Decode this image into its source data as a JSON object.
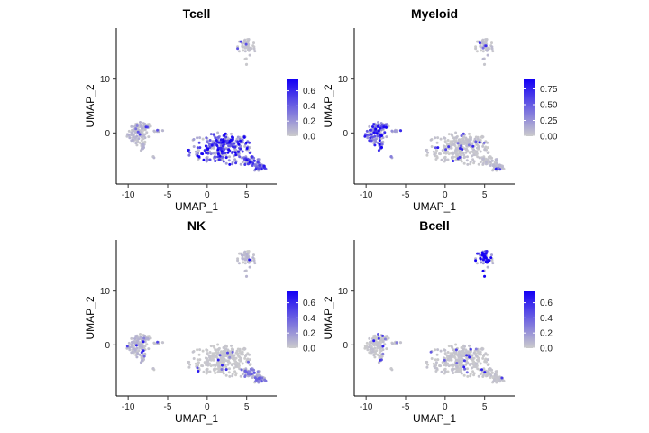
{
  "chart_data": [
    {
      "type": "scatter",
      "title": "Tcell",
      "xlabel": "UMAP_1",
      "ylabel": "UMAP_2",
      "xlim": [
        -11.5,
        8.8
      ],
      "ylim": [
        -9.5,
        19.5
      ],
      "x_ticks": [
        "-10",
        "-5",
        "0",
        "5"
      ],
      "y_ticks": [
        "0",
        "10"
      ],
      "legend_ticks": [
        "0.0",
        "0.2",
        "0.4",
        "0.6"
      ],
      "color_range": [
        0,
        0.75
      ],
      "low_color": "#cccccc",
      "high_color": "#1400f5",
      "cluster_expression": {
        "myeloid": 0.07,
        "tcell": 0.5,
        "tail": 0.45,
        "bcell": 0.03,
        "mid": 0.06
      }
    },
    {
      "type": "scatter",
      "title": "Myeloid",
      "xlabel": "UMAP_1",
      "ylabel": "UMAP_2",
      "xlim": [
        -11.5,
        8.8
      ],
      "ylim": [
        -9.5,
        19.5
      ],
      "x_ticks": [
        "-10",
        "-5",
        "0",
        "5"
      ],
      "y_ticks": [
        "0",
        "10"
      ],
      "legend_ticks": [
        "0.00",
        "0.25",
        "0.50",
        "0.75"
      ],
      "color_range": [
        0,
        0.9
      ],
      "low_color": "#cccccc",
      "high_color": "#1400f5",
      "cluster_expression": {
        "myeloid": 0.62,
        "tcell": 0.04,
        "tail": 0.06,
        "bcell": 0.06,
        "mid": 0.45
      }
    },
    {
      "type": "scatter",
      "title": "NK",
      "xlabel": "UMAP_1",
      "ylabel": "UMAP_2",
      "xlim": [
        -11.5,
        8.8
      ],
      "ylim": [
        -9.5,
        19.5
      ],
      "x_ticks": [
        "-10",
        "-5",
        "0",
        "5"
      ],
      "y_ticks": [
        "0",
        "10"
      ],
      "legend_ticks": [
        "0.0",
        "0.2",
        "0.4",
        "0.6"
      ],
      "color_range": [
        0,
        0.75
      ],
      "low_color": "#cccccc",
      "high_color": "#1400f5",
      "cluster_expression": {
        "myeloid": 0.07,
        "tcell": 0.02,
        "tail": 0.28,
        "bcell": 0.06,
        "mid": 0.04
      }
    },
    {
      "type": "scatter",
      "title": "Bcell",
      "xlabel": "UMAP_1",
      "ylabel": "UMAP_2",
      "xlim": [
        -11.5,
        8.8
      ],
      "ylim": [
        -9.5,
        19.5
      ],
      "x_ticks": [
        "-10",
        "-5",
        "0",
        "5"
      ],
      "y_ticks": [
        "0",
        "10"
      ],
      "legend_ticks": [
        "0.0",
        "0.2",
        "0.4",
        "0.6"
      ],
      "color_range": [
        0,
        0.75
      ],
      "low_color": "#cccccc",
      "high_color": "#1400f5",
      "cluster_expression": {
        "myeloid": 0.03,
        "tcell": 0.03,
        "tail": 0.03,
        "bcell": 0.6,
        "mid": 0.03
      }
    }
  ]
}
